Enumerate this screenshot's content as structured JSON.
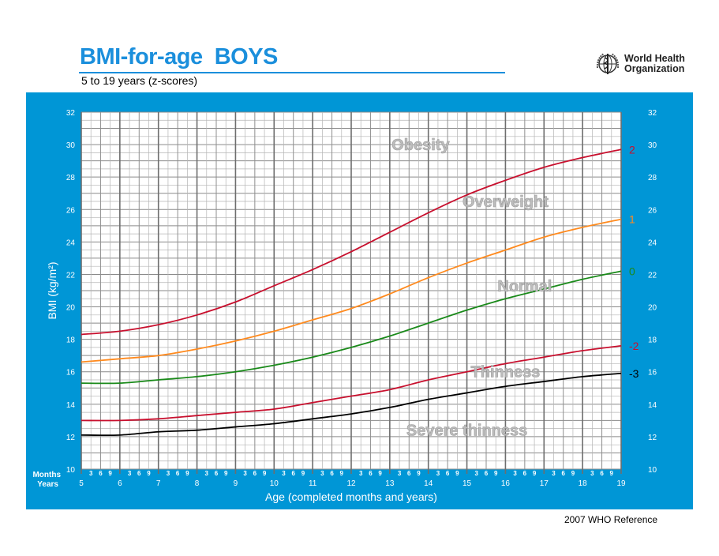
{
  "header": {
    "title": "BMI-for-age  BOYS",
    "subtitle": "5 to 19 years (z-scores)",
    "org_line1": "World Health",
    "org_line2": "Organization"
  },
  "footer": "2007  WHO Reference",
  "colors": {
    "panel": "#0096d6",
    "title": "#1b8fdc"
  },
  "chart_data": {
    "type": "line",
    "xlabel": "Age (completed months and years)",
    "ylabel": "BMI (kg/m²)",
    "months_label": "Months",
    "years_label": "Years",
    "xlim": [
      5,
      19
    ],
    "ylim": [
      10,
      32
    ],
    "x_ticks": [
      5,
      6,
      7,
      8,
      9,
      10,
      11,
      12,
      13,
      14,
      15,
      16,
      17,
      18,
      19
    ],
    "month_ticks": [
      "3",
      "6",
      "9"
    ],
    "y_ticks": [
      10,
      12,
      14,
      16,
      18,
      20,
      22,
      24,
      26,
      28,
      30,
      32
    ],
    "grid": true,
    "x": [
      5,
      6,
      7,
      8,
      9,
      10,
      11,
      12,
      13,
      14,
      15,
      16,
      17,
      18,
      19
    ],
    "series": [
      {
        "name": "2",
        "color": "#c8102e",
        "values": [
          18.3,
          18.5,
          18.9,
          19.5,
          20.3,
          21.3,
          22.3,
          23.4,
          24.6,
          25.8,
          26.9,
          27.8,
          28.6,
          29.2,
          29.7
        ]
      },
      {
        "name": "1",
        "color": "#ff8a1e",
        "values": [
          16.6,
          16.8,
          17.0,
          17.4,
          17.9,
          18.5,
          19.2,
          19.9,
          20.8,
          21.8,
          22.7,
          23.5,
          24.3,
          24.9,
          25.4
        ]
      },
      {
        "name": "0",
        "color": "#1a8a1a",
        "values": [
          15.3,
          15.3,
          15.5,
          15.7,
          16.0,
          16.4,
          16.9,
          17.5,
          18.2,
          19.0,
          19.8,
          20.5,
          21.1,
          21.7,
          22.2
        ]
      },
      {
        "name": "-2",
        "color": "#c8102e",
        "values": [
          13.0,
          13.0,
          13.1,
          13.3,
          13.5,
          13.7,
          14.1,
          14.5,
          14.9,
          15.5,
          16.0,
          16.5,
          16.9,
          17.3,
          17.6
        ]
      },
      {
        "name": "-3",
        "color": "#000000",
        "values": [
          12.1,
          12.1,
          12.3,
          12.4,
          12.6,
          12.8,
          13.1,
          13.4,
          13.8,
          14.3,
          14.7,
          15.1,
          15.4,
          15.7,
          15.9
        ]
      }
    ],
    "annotations": [
      {
        "text": "Obesity",
        "x": 13.8,
        "y": 30.0
      },
      {
        "text": "Overweight",
        "x": 16.0,
        "y": 26.5
      },
      {
        "text": "Normal",
        "x": 16.5,
        "y": 21.3
      },
      {
        "text": "Thinness",
        "x": 16.0,
        "y": 16.0
      },
      {
        "text": "Severe thinness",
        "x": 15.0,
        "y": 12.4
      }
    ]
  }
}
